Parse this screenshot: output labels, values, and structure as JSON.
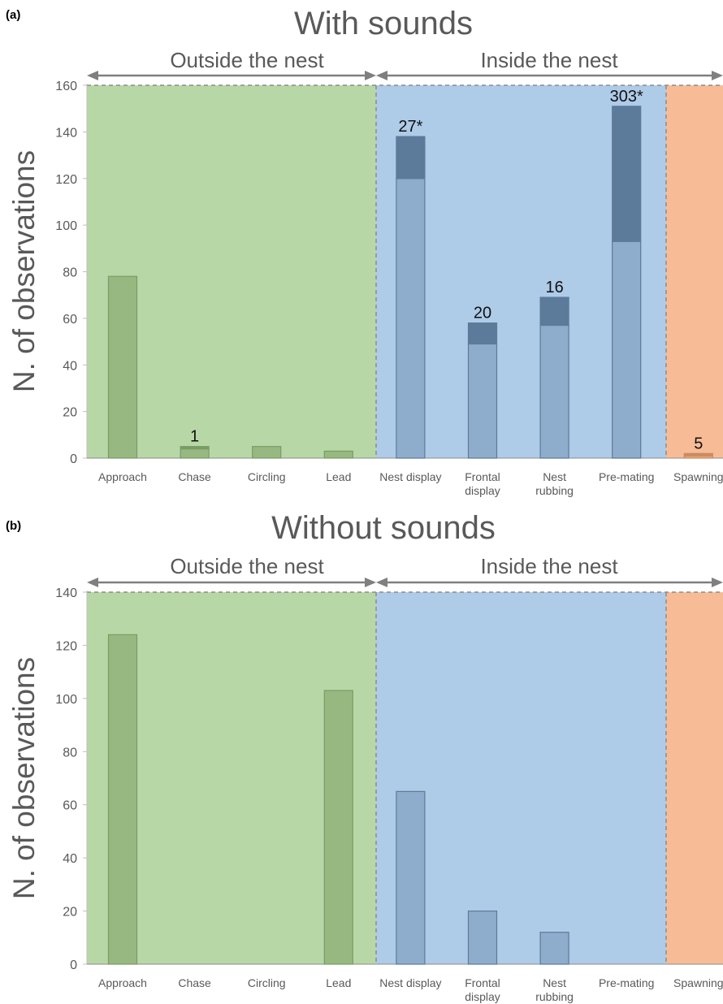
{
  "colors": {
    "outside_bg": "#b8d7a6",
    "inside_bg": "#aecbe8",
    "spawn_bg": "#f7bc96",
    "bar_green": "#97b880",
    "bar_green_dark": "#7a9c64",
    "bar_blue": "#8eadcc",
    "bar_blue_dark": "#5c7b9a",
    "bar_orange": "#e8a478",
    "bar_orange_dark": "#c98b63",
    "arrow": "#7f7f7f",
    "text": "#595959"
  },
  "chart_data": [
    {
      "panel": "(a)",
      "type": "bar",
      "title": "With sounds",
      "ylabel": "N. of observations",
      "ylim": [
        0,
        160
      ],
      "yticks": [
        0,
        20,
        40,
        60,
        80,
        100,
        120,
        140,
        160
      ],
      "categories": [
        [
          "Approach"
        ],
        [
          "Chase"
        ],
        [
          "Circling"
        ],
        [
          "Lead"
        ],
        [
          "Nest display"
        ],
        [
          "Frontal",
          "display"
        ],
        [
          "Nest",
          "rubbing"
        ],
        [
          "Pre-mating"
        ],
        [
          "Spawning"
        ]
      ],
      "regions": [
        {
          "label": "Outside the nest",
          "from": 0,
          "to": 4
        },
        {
          "label": "Inside the nest",
          "from": 4,
          "to": 9
        },
        {
          "label": "",
          "from": 8,
          "to": 9
        }
      ],
      "series": [
        {
          "values": [
            78,
            4,
            5,
            3,
            120,
            49,
            57,
            93,
            1
          ]
        },
        {
          "values": [
            0,
            1,
            0,
            0,
            18,
            9,
            12,
            58,
            1
          ]
        }
      ],
      "bar_labels": [
        "",
        "1",
        "",
        "",
        "27*",
        "20",
        "16",
        "303*",
        "5"
      ]
    },
    {
      "panel": "(b)",
      "type": "bar",
      "title": "Without sounds",
      "ylabel": "N. of observations",
      "ylim": [
        0,
        140
      ],
      "yticks": [
        0,
        20,
        40,
        60,
        80,
        100,
        120,
        140
      ],
      "categories": [
        [
          "Approach"
        ],
        [
          "Chase"
        ],
        [
          "Circling"
        ],
        [
          "Lead"
        ],
        [
          "Nest display"
        ],
        [
          "Frontal",
          "display"
        ],
        [
          "Nest",
          "rubbing"
        ],
        [
          "Pre-mating"
        ],
        [
          "Spawning"
        ]
      ],
      "regions": [
        {
          "label": "Outside the nest",
          "from": 0,
          "to": 4
        },
        {
          "label": "Inside the nest",
          "from": 4,
          "to": 9
        },
        {
          "label": "",
          "from": 8,
          "to": 9
        }
      ],
      "series": [
        {
          "values": [
            124,
            0,
            0,
            103,
            65,
            20,
            12,
            0,
            0
          ]
        },
        {
          "values": [
            0,
            0,
            0,
            0,
            0,
            0,
            0,
            0,
            0
          ]
        }
      ],
      "bar_labels": [
        "",
        "",
        "",
        "",
        "",
        "",
        "",
        "",
        ""
      ]
    }
  ]
}
